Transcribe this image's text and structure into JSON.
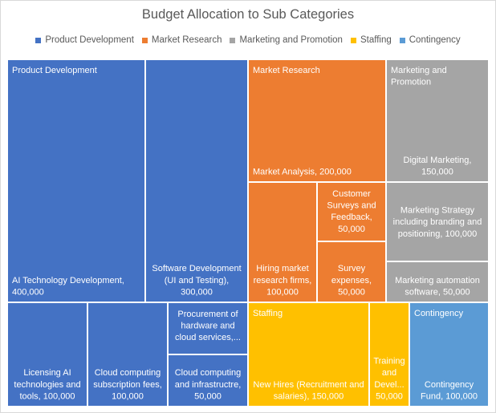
{
  "chart_data": {
    "type": "treemap",
    "title": "Budget Allocation to Sub Categories",
    "legend_position": "top",
    "groups": [
      {
        "name": "Product Development",
        "color": "#4472c4",
        "text_color": "#ffffff",
        "items": [
          {
            "label": "AI Technology Development, 400,000",
            "value": 400000
          },
          {
            "label": "Software Development (UI and Testing), 300,000",
            "value": 300000
          },
          {
            "label": "Licensing AI technologies and tools, 100,000",
            "value": 100000
          },
          {
            "label": "Cloud computing subscription fees, 100,000",
            "value": 100000
          },
          {
            "label": "Procurement of hardware and cloud services,...",
            "value": 50000
          },
          {
            "label": "Cloud computing and infrastructre, 50,000",
            "value": 50000
          }
        ]
      },
      {
        "name": "Market Research",
        "color": "#ed7d31",
        "text_color": "#ffffff",
        "items": [
          {
            "label": "Market Analysis, 200,000",
            "value": 200000
          },
          {
            "label": "Hiring market research firms, 100,000",
            "value": 100000
          },
          {
            "label": "Customer Surveys and Feedback, 50,000",
            "value": 50000
          },
          {
            "label": "Survey expenses, 50,000",
            "value": 50000
          }
        ]
      },
      {
        "name": "Marketing and Promotion",
        "color": "#a5a5a5",
        "text_color": "#ffffff",
        "items": [
          {
            "label": "Digital Marketing, 150,000",
            "value": 150000
          },
          {
            "label": "Marketing Strategy including branding and positioning, 100,000",
            "value": 100000
          },
          {
            "label": "Marketing automation software, 50,000",
            "value": 50000
          }
        ]
      },
      {
        "name": "Staffing",
        "color": "#ffc000",
        "text_color": "#ffffff",
        "items": [
          {
            "label": "New Hires (Recruitment and salaries), 150,000",
            "value": 150000
          },
          {
            "label": "Training and Devel... 50,000",
            "value": 50000
          }
        ]
      },
      {
        "name": "Contingency",
        "color": "#5b9bd5",
        "text_color": "#ffffff",
        "items": [
          {
            "label": "Contingency Fund, 100,000",
            "value": 100000
          }
        ]
      }
    ]
  }
}
